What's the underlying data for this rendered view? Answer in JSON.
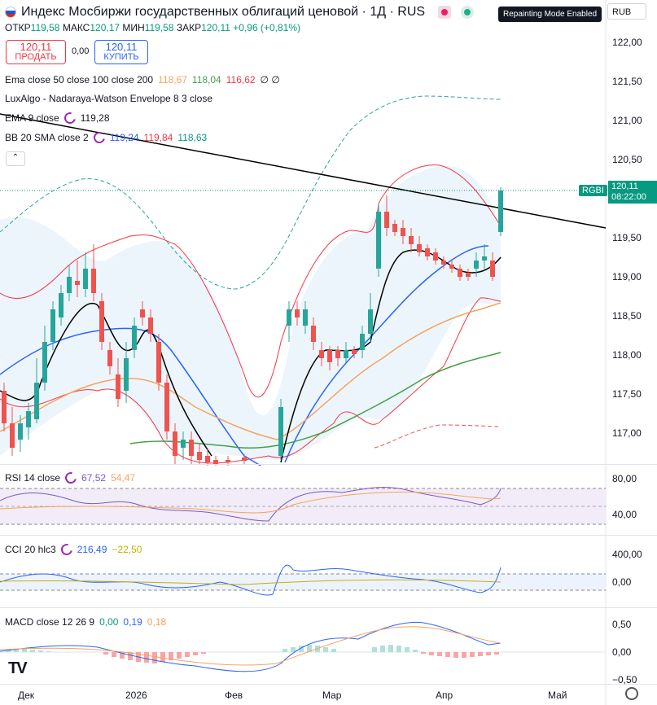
{
  "header": {
    "title": "Индекс Мосбиржи государственных облигаций ценовой · 1Д · RUS",
    "repaint_badge": "Repainting Mode Enabled",
    "currency": "RUB"
  },
  "ohlc": {
    "open_label": "ОТКР",
    "open": "119,58",
    "high_label": "МАКС",
    "high": "120,17",
    "low_label": "МИН",
    "low": "119,58",
    "close_label": "ЗАКР",
    "close": "120,11",
    "change": "+0,96 (+0,81%)"
  },
  "trade": {
    "sell_price": "120,11",
    "sell_label": "ПРОДАТЬ",
    "spread": "0,00",
    "buy_price": "120,11",
    "buy_label": "КУПИТЬ"
  },
  "indicators": {
    "ema": {
      "label": "Ema close 50 close 100 close 200",
      "v1": "118,67",
      "v2": "118,04",
      "v3": "116,62",
      "v4": "∅ ∅"
    },
    "luxalgo": {
      "label": "LuxAlgo - Nadaraya-Watson Envelope 8 3 close"
    },
    "ema9": {
      "label": "EMA 9 close",
      "v1": "119,28"
    },
    "bb": {
      "label": "BB 20 SMA close 2",
      "v1": "119,24",
      "v2": "119,84",
      "v3": "118,63"
    },
    "rsi": {
      "label": "RSI 14 close",
      "v1": "67,52",
      "v2": "54,47"
    },
    "cci": {
      "label": "CCI 20 hlc3",
      "v1": "216,49",
      "v2": "−22,50"
    },
    "macd": {
      "label": "MACD close 12 26 9",
      "v1": "0,00",
      "v2": "0,19",
      "v3": "0,18"
    }
  },
  "price_axis": [
    "122,00",
    "121,50",
    "121,00",
    "120,50",
    "119,50",
    "119,00",
    "118,50",
    "118,00",
    "117,50",
    "117,00"
  ],
  "last_price": {
    "symbol": "RGBI",
    "price": "120,11",
    "time": "08:22:00"
  },
  "rsi_axis": [
    "80,00",
    "40,00"
  ],
  "cci_axis": [
    "400,00",
    "0,00"
  ],
  "macd_axis": [
    "0,50",
    "0,00",
    "−0,50"
  ],
  "time_axis": [
    "Дек",
    "2026",
    "Фев",
    "Мар",
    "Апр",
    "Май"
  ],
  "colors": {
    "up": "#26a69a",
    "down": "#ef5350",
    "ema50": "#f7a35c",
    "ema100": "#43a047",
    "ema9": "#000000",
    "bb_basis": "#2962ff",
    "bb_band": "#f23645",
    "env": "#26a69a",
    "rsi": "#7e57c2",
    "signal": "#f7a35c"
  }
}
